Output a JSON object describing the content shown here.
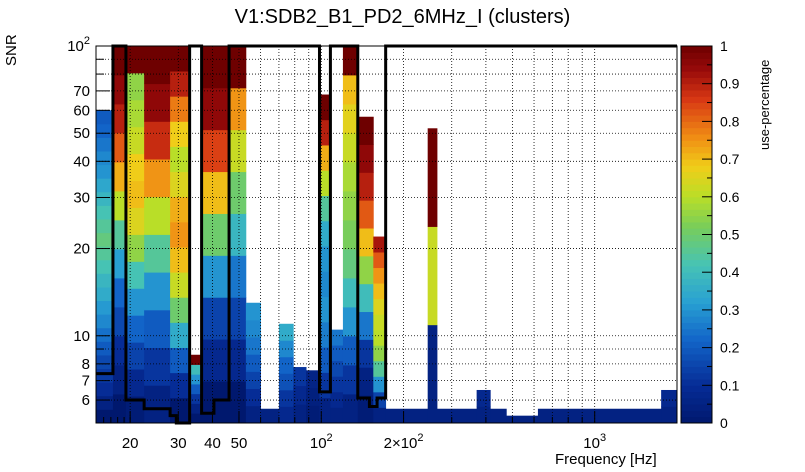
{
  "chart_data": {
    "type": "heatmap",
    "title": "V1:SDB2_B1_PD2_6MHz_I (clusters)",
    "xlabel": "Frequency [Hz]",
    "ylabel": "SNR",
    "zlabel": "use-percentage",
    "x_scale": "log",
    "y_scale": "log",
    "xlim": [
      15,
      2000
    ],
    "ylim": [
      5,
      100
    ],
    "zlim": [
      0,
      1
    ],
    "grid": true,
    "x_tick_labels": [
      {
        "value": 20,
        "label": "20"
      },
      {
        "value": 30,
        "label": "30"
      },
      {
        "value": 40,
        "label": "40"
      },
      {
        "value": 50,
        "label": "50"
      },
      {
        "value": 100,
        "label": "10",
        "sup": "2"
      },
      {
        "value": 200,
        "label": "2×10",
        "sup": "2"
      },
      {
        "value": 1000,
        "label": "10",
        "sup": "3"
      }
    ],
    "y_tick_labels": [
      {
        "value": 6,
        "label": "6"
      },
      {
        "value": 7,
        "label": "7"
      },
      {
        "value": 8,
        "label": "8"
      },
      {
        "value": 10,
        "label": "10"
      },
      {
        "value": 20,
        "label": "20"
      },
      {
        "value": 30,
        "label": "30"
      },
      {
        "value": 40,
        "label": "40"
      },
      {
        "value": 50,
        "label": "50"
      },
      {
        "value": 60,
        "label": "60"
      },
      {
        "value": 70,
        "label": "70"
      },
      {
        "value": 100,
        "label": "10",
        "sup": "2"
      }
    ],
    "z_tick_labels": [
      "0",
      "0.1",
      "0.2",
      "0.3",
      "0.4",
      "0.5",
      "0.6",
      "0.7",
      "0.8",
      "0.9",
      "1"
    ],
    "columns": [
      {
        "f": [
          15.0,
          17.3
        ],
        "low": 5,
        "top": 60,
        "v": [
          0.0,
          0.05,
          0.1,
          0.13,
          0.16,
          0.2,
          0.24,
          0.28,
          0.31,
          0.35,
          0.38,
          0.42,
          0.45,
          0.48,
          0.45,
          0.42,
          0.38,
          0.34,
          0.3,
          0.28,
          0.25,
          0.22,
          0.2
        ]
      },
      {
        "f": [
          17.3,
          19.3
        ],
        "low": 5,
        "top": 100,
        "v": [
          0.0,
          0.05,
          0.1,
          0.16,
          0.22,
          0.32,
          0.45,
          0.6,
          0.72,
          0.82,
          0.9,
          0.95,
          1
        ]
      },
      {
        "f": [
          19.3,
          22.5
        ],
        "low": 5,
        "top": 100,
        "v": [
          0.02,
          0.08,
          0.15,
          0.22,
          0.3,
          0.42,
          0.55,
          0.65,
          0.7,
          0.68,
          0.62,
          0.58,
          0.55,
          1
        ]
      },
      {
        "f": [
          22.5,
          28.0
        ],
        "low": 5,
        "top": 100,
        "v": [
          0.05,
          0.12,
          0.2,
          0.3,
          0.45,
          0.6,
          0.75,
          0.88,
          0.95,
          1
        ]
      },
      {
        "f": [
          28.0,
          33.0
        ],
        "low": 5,
        "top": 100,
        "v": [
          0.0,
          0.1,
          0.2,
          0.35,
          0.5,
          0.62,
          0.7,
          0.75,
          0.72,
          0.65,
          0.6,
          0.68,
          0.78,
          0.9,
          1
        ]
      },
      {
        "f": [
          33.0,
          36.5
        ],
        "low": 5,
        "top": 8.6,
        "v": [
          0.0,
          0.05,
          0.12,
          0.2,
          0.3,
          0.4,
          1
        ]
      },
      {
        "f": [
          36.5,
          46.0
        ],
        "low": 5,
        "top": 100,
        "v": [
          0.0,
          0.08,
          0.15,
          0.3,
          0.5,
          0.7,
          0.85,
          0.95,
          1
        ]
      },
      {
        "f": [
          46.0,
          53.0
        ],
        "low": 5,
        "top": 100,
        "v": [
          0.0,
          0.08,
          0.15,
          0.25,
          0.38,
          0.5,
          0.62,
          0.75,
          1
        ]
      },
      {
        "f": [
          53.0,
          60.0
        ],
        "low": 5,
        "top": 13,
        "v": [
          0.05,
          0.1,
          0.15,
          0.2,
          0.25,
          0.28,
          0.3
        ]
      },
      {
        "f": [
          60.0,
          70.0
        ],
        "low": 5,
        "top": 5.6,
        "v": [
          0.05
        ]
      },
      {
        "f": [
          70.0,
          79.0
        ],
        "low": 5,
        "top": 11,
        "v": [
          0.08,
          0.12,
          0.18,
          0.22,
          0.28,
          0.35
        ]
      },
      {
        "f": [
          79.0,
          88.0
        ],
        "low": 5,
        "top": 7.8,
        "v": [
          0.05,
          0.08,
          0.12
        ]
      },
      {
        "f": [
          88.0,
          98.5
        ],
        "low": 5,
        "top": 7.6,
        "v": [
          0.02,
          0.04,
          0.06
        ]
      },
      {
        "f": [
          98.5,
          108.0
        ],
        "low": 5,
        "top": 68,
        "v": [
          0.05,
          0.12,
          0.2,
          0.26,
          0.3,
          0.28,
          0.3,
          0.35,
          0.45,
          0.6,
          0.72,
          0.9,
          1
        ]
      },
      {
        "f": [
          108.0,
          120.0
        ],
        "low": 5,
        "top": 10.5,
        "v": [
          0.05,
          0.08,
          0.12,
          0.16,
          0.2,
          0.25
        ]
      },
      {
        "f": [
          120.0,
          136.0
        ],
        "low": 5,
        "top": 100,
        "v": [
          0.05,
          0.12,
          0.2,
          0.3,
          0.4,
          0.48,
          0.52,
          0.55,
          0.58,
          0.62,
          0.66,
          0.7,
          1
        ]
      },
      {
        "f": [
          136.0,
          155.0
        ],
        "low": 5,
        "top": 57,
        "v": [
          0.02,
          0.05,
          0.12,
          0.25,
          0.4,
          0.55,
          0.7,
          0.82,
          0.9,
          0.95,
          1
        ]
      },
      {
        "f": [
          155.0,
          172.0
        ],
        "low": 5,
        "top": 22,
        "v": [
          0.05,
          0.15,
          0.3,
          0.45,
          0.55,
          0.6,
          0.62,
          0.65,
          0.7,
          0.75,
          0.82,
          0.92
        ]
      },
      {
        "f": [
          172.0,
          245.0
        ],
        "low": 5,
        "top": 5.6,
        "v": [
          0.05
        ]
      },
      {
        "f": [
          245.0,
          265.0
        ],
        "low": 5,
        "top": 52,
        "v": [
          0.05,
          0.62,
          1
        ]
      },
      {
        "f": [
          265.0,
          370.0
        ],
        "low": 5,
        "top": 5.6,
        "v": [
          0.05
        ]
      },
      {
        "f": [
          370.0,
          415.0
        ],
        "low": 5,
        "top": 6.5,
        "v": [
          0.05,
          0.08
        ]
      },
      {
        "f": [
          415.0,
          475.0
        ],
        "low": 5,
        "top": 5.6,
        "v": [
          0.05
        ]
      },
      {
        "f": [
          475.0,
          620.0
        ],
        "low": 5,
        "top": 5.3,
        "v": [
          0.05
        ]
      },
      {
        "f": [
          620.0,
          1750.0
        ],
        "low": 5,
        "top": 5.6,
        "v": [
          0.05
        ]
      },
      {
        "f": [
          1750.0,
          2000.0
        ],
        "low": 5,
        "top": 6.5,
        "v": [
          0.05,
          0.08
        ]
      }
    ],
    "outline": [
      [
        15,
        7.4
      ],
      [
        17.3,
        7.4
      ],
      [
        17.3,
        100
      ],
      [
        19.3,
        100
      ],
      [
        19.3,
        6.0
      ],
      [
        22.5,
        6.0
      ],
      [
        22.5,
        5.6
      ],
      [
        28,
        5.6
      ],
      [
        28,
        5.3
      ],
      [
        29.5,
        5.3
      ],
      [
        29.5,
        5.0
      ],
      [
        33,
        5.0
      ],
      [
        33,
        100
      ],
      [
        36.5,
        100
      ],
      [
        36.5,
        5.4
      ],
      [
        40.5,
        5.4
      ],
      [
        40.5,
        6.0
      ],
      [
        46,
        6.0
      ],
      [
        46,
        100
      ],
      [
        98.5,
        100
      ],
      [
        98.5,
        6.4
      ],
      [
        108,
        6.4
      ],
      [
        108,
        100
      ],
      [
        136,
        100
      ],
      [
        136,
        6.1
      ],
      [
        150,
        6.1
      ],
      [
        150,
        5.7
      ],
      [
        160,
        5.7
      ],
      [
        160,
        6.1
      ],
      [
        172,
        6.1
      ],
      [
        172,
        100
      ],
      [
        2000,
        100
      ]
    ]
  }
}
